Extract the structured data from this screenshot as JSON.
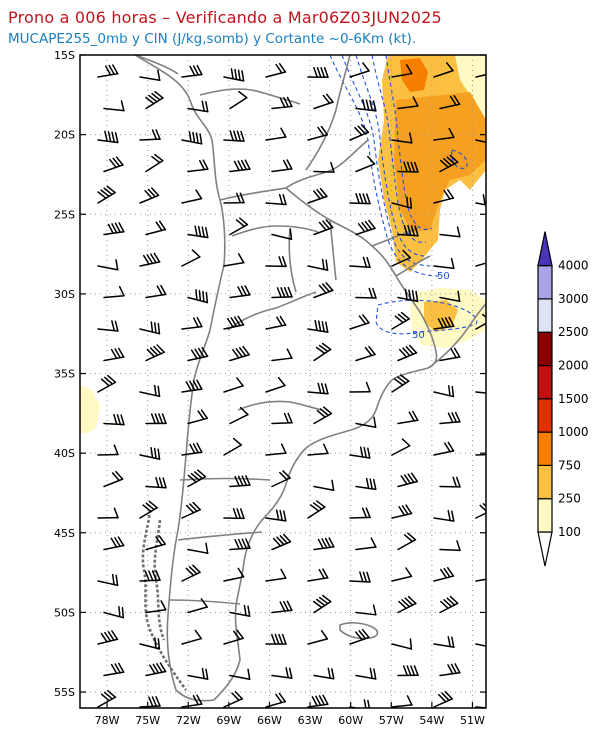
{
  "title": "Prono a 006 horas – Verificando a Mar06Z03JUN2025",
  "subtitle": "MUCAPE255_0mb y CIN (J/kg,somb) y Cortante ~0-6Km (kt).",
  "axes": {
    "lat_labels": [
      "15S",
      "20S",
      "25S",
      "30S",
      "35S",
      "40S",
      "45S",
      "50S",
      "55S"
    ],
    "lon_labels": [
      "78W",
      "75W",
      "72W",
      "69W",
      "66W",
      "63W",
      "60W",
      "57W",
      "54W",
      "51W"
    ],
    "lat_range": [
      -56,
      -15
    ],
    "lon_range": [
      -80,
      -50
    ],
    "grid": true
  },
  "colorbar": {
    "levels": [
      "100",
      "250",
      "750",
      "1000",
      "1500",
      "2000",
      "2500",
      "3000",
      "4000"
    ],
    "colors": [
      "#fff9c4",
      "#fbc042",
      "#f77f00",
      "#e03000",
      "#c01010",
      "#8a0000",
      "#dde3f5",
      "#a9a4ea",
      "#7670dc",
      "#4a34b8"
    ]
  },
  "contour_labels": [
    "50",
    "50"
  ],
  "colors": {
    "title": "#c0141c",
    "subtitle": "#1a7fc0",
    "border": "#808080",
    "grid": "#9a9a9a",
    "cin_contour": "#2050e0",
    "barb": "#000000"
  }
}
